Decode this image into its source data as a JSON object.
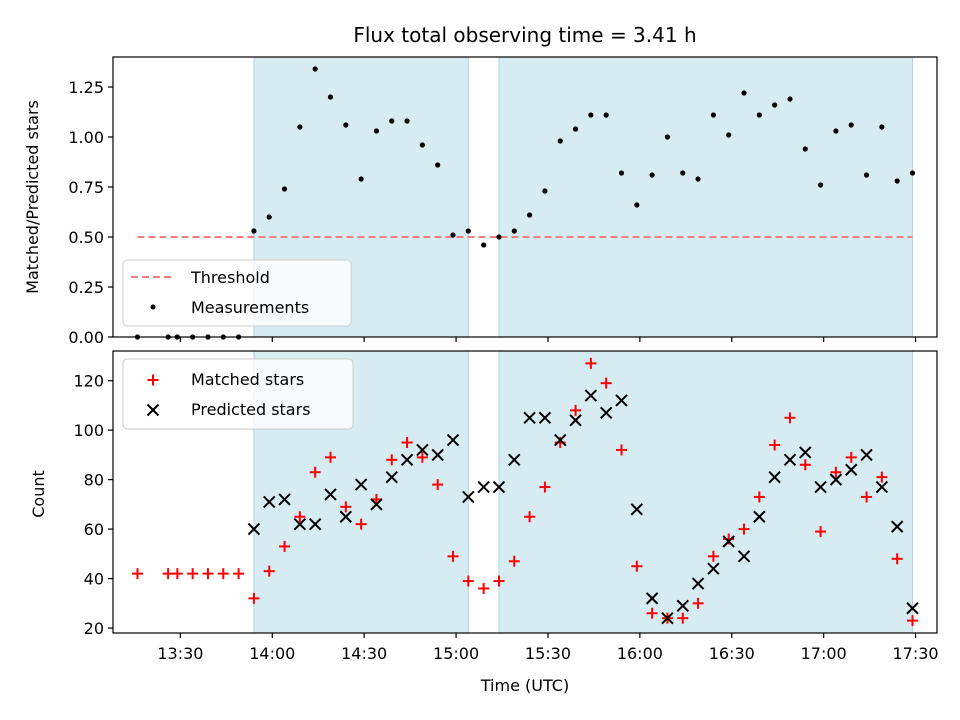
{
  "chart_data": [
    {
      "type": "scatter",
      "title": "Flux total observing time = 3.41 h",
      "ylabel": "Matched/Predicted stars",
      "xlabel": "",
      "ylim": [
        0,
        1.4
      ],
      "yticks": [
        "0.00",
        "0.25",
        "0.50",
        "0.75",
        "1.00",
        "1.25"
      ],
      "threshold": {
        "name": "Threshold",
        "value": 0.5,
        "x_start": "13:16",
        "x_end": "17:29",
        "color": "#f08080"
      },
      "measurement_series_name": "Measurements",
      "shaded_regions": [
        [
          "13:54",
          "15:04"
        ],
        [
          "15:14",
          "17:29"
        ]
      ],
      "shade_color": "#add8e6",
      "legend": "bottom-left",
      "x": [
        "13:16",
        "13:26",
        "13:29",
        "13:34",
        "13:39",
        "13:44",
        "13:49",
        "13:54",
        "13:59",
        "14:04",
        "14:09",
        "14:14",
        "14:19",
        "14:24",
        "14:29",
        "14:34",
        "14:39",
        "14:44",
        "14:49",
        "14:54",
        "14:59",
        "15:04",
        "15:09",
        "15:14",
        "15:19",
        "15:24",
        "15:29",
        "15:34",
        "15:39",
        "15:44",
        "15:49",
        "15:54",
        "15:59",
        "16:04",
        "16:09",
        "16:14",
        "16:19",
        "16:24",
        "16:29",
        "16:34",
        "16:39",
        "16:44",
        "16:49",
        "16:54",
        "16:59",
        "17:04",
        "17:09",
        "17:14",
        "17:19",
        "17:24",
        "17:29"
      ],
      "y": [
        0,
        0,
        0,
        0,
        0,
        0,
        0,
        0.53,
        0.6,
        0.74,
        1.05,
        1.34,
        1.2,
        1.06,
        0.79,
        1.03,
        1.08,
        1.08,
        0.96,
        0.86,
        0.51,
        0.53,
        0.46,
        0.5,
        0.53,
        0.61,
        0.73,
        0.98,
        1.04,
        1.11,
        1.11,
        0.82,
        0.66,
        0.81,
        1.0,
        0.82,
        0.79,
        1.11,
        1.01,
        1.22,
        1.11,
        1.16,
        1.19,
        0.94,
        0.76,
        1.03,
        1.06,
        0.81,
        1.05,
        0.78,
        0.82
      ]
    },
    {
      "type": "scatter",
      "title": "",
      "ylabel": "Count",
      "xlabel": "Time (UTC)",
      "ylim": [
        18,
        132
      ],
      "yticks": [
        "20",
        "40",
        "60",
        "80",
        "100",
        "120"
      ],
      "xticks": [
        "13:30",
        "14:00",
        "14:30",
        "15:00",
        "15:30",
        "16:00",
        "16:30",
        "17:00",
        "17:30"
      ],
      "legend": "top-left",
      "series": [
        {
          "name": "Matched stars",
          "marker": "+",
          "color": "#ff0000",
          "x": [
            "13:16",
            "13:26",
            "13:29",
            "13:34",
            "13:39",
            "13:44",
            "13:49",
            "13:54",
            "13:59",
            "14:04",
            "14:09",
            "14:14",
            "14:19",
            "14:24",
            "14:29",
            "14:34",
            "14:39",
            "14:44",
            "14:49",
            "14:54",
            "14:59",
            "15:04",
            "15:09",
            "15:14",
            "15:19",
            "15:24",
            "15:29",
            "15:34",
            "15:39",
            "15:44",
            "15:49",
            "15:54",
            "15:59",
            "16:04",
            "16:09",
            "16:14",
            "16:19",
            "16:24",
            "16:29",
            "16:34",
            "16:39",
            "16:44",
            "16:49",
            "16:54",
            "16:59",
            "17:04",
            "17:09",
            "17:14",
            "17:19",
            "17:24",
            "17:29"
          ],
          "y": [
            42,
            42,
            42,
            42,
            42,
            42,
            42,
            32,
            43,
            53,
            65,
            83,
            89,
            69,
            62,
            72,
            88,
            95,
            89,
            78,
            49,
            39,
            36,
            39,
            47,
            65,
            77,
            95,
            108,
            127,
            119,
            92,
            45,
            26,
            24,
            24,
            30,
            49,
            56,
            60,
            73,
            94,
            105,
            86,
            59,
            83,
            89,
            73,
            81,
            48,
            23
          ]
        },
        {
          "name": "Predicted stars",
          "marker": "x",
          "color": "#000000",
          "x": [
            "13:54",
            "13:59",
            "14:04",
            "14:09",
            "14:14",
            "14:19",
            "14:24",
            "14:29",
            "14:34",
            "14:39",
            "14:44",
            "14:49",
            "14:54",
            "14:59",
            "15:04",
            "15:09",
            "15:14",
            "15:19",
            "15:24",
            "15:29",
            "15:34",
            "15:39",
            "15:44",
            "15:49",
            "15:54",
            "15:59",
            "16:04",
            "16:09",
            "16:14",
            "16:19",
            "16:24",
            "16:29",
            "16:34",
            "16:39",
            "16:44",
            "16:49",
            "16:54",
            "16:59",
            "17:04",
            "17:09",
            "17:14",
            "17:19",
            "17:24",
            "17:29"
          ],
          "y": [
            60,
            71,
            72,
            62,
            62,
            74,
            65,
            78,
            70,
            81,
            88,
            92,
            90,
            96,
            73,
            77,
            77,
            88,
            105,
            105,
            96,
            104,
            114,
            107,
            112,
            68,
            32,
            24,
            29,
            38,
            44,
            55,
            49,
            65,
            81,
            88,
            91,
            77,
            80,
            84,
            90,
            77,
            61,
            28
          ]
        }
      ]
    }
  ]
}
